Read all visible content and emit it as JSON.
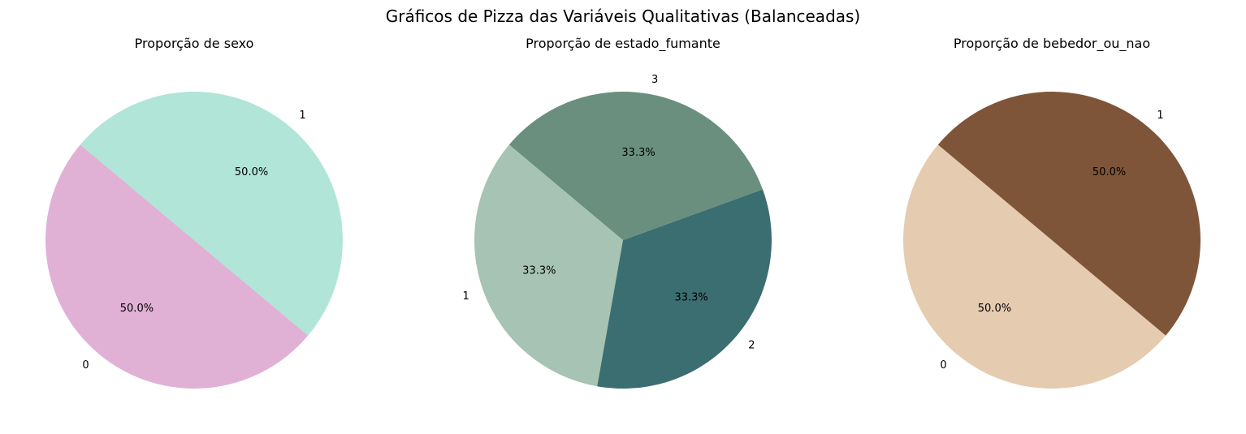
{
  "figure": {
    "suptitle": "Gráficos de Pizza das Variáveis Qualitativas (Balanceadas)"
  },
  "chart_data": [
    {
      "type": "pie",
      "title": "Proporção de sexo",
      "labels": [
        "0",
        "1"
      ],
      "values": [
        50.0,
        50.0
      ],
      "autopct": [
        "50.0%",
        "50.0%"
      ],
      "colors": [
        "#e0b0d5",
        "#b0e5d8"
      ],
      "startangle": 140
    },
    {
      "type": "pie",
      "title": "Proporção de estado_fumante",
      "labels": [
        "1",
        "2",
        "3"
      ],
      "values": [
        33.3,
        33.3,
        33.3
      ],
      "autopct": [
        "33.3%",
        "33.3%",
        "33.3%"
      ],
      "colors": [
        "#a6c3b3",
        "#3b6e70",
        "#6a8f7e"
      ],
      "startangle": 140
    },
    {
      "type": "pie",
      "title": "Proporção de bebedor_ou_nao",
      "labels": [
        "0",
        "1"
      ],
      "values": [
        50.0,
        50.0
      ],
      "autopct": [
        "50.0%",
        "50.0%"
      ],
      "colors": [
        "#e5cbb0",
        "#7f5539"
      ],
      "startangle": 140
    }
  ]
}
